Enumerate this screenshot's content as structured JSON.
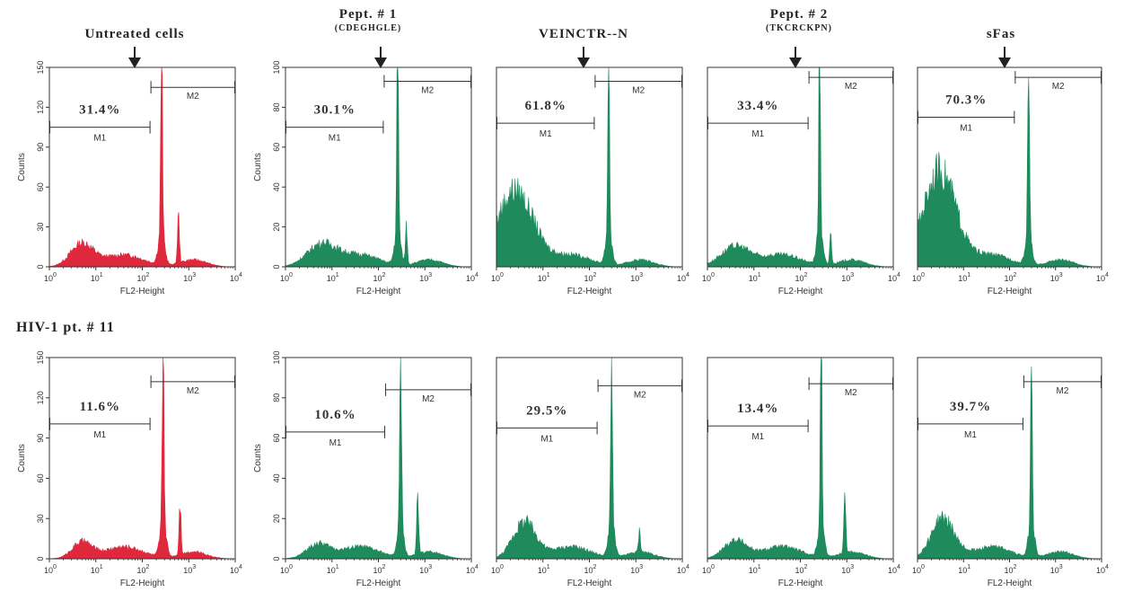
{
  "columns": [
    {
      "title": "Untreated cells",
      "subtitle": ""
    },
    {
      "title": "Pept. # 1",
      "subtitle": "(CDEGHGLE)"
    },
    {
      "title": "VEINCTR--N",
      "subtitle": ""
    },
    {
      "title": "Pept. # 2",
      "subtitle": "(TKCRCKPN)"
    },
    {
      "title": "sFas",
      "subtitle": ""
    }
  ],
  "row_label": "HIV-1 pt. # 11",
  "colors": {
    "untreated": "#e0283c",
    "treated": "#1f8a5c",
    "axis": "#333333"
  },
  "chart_data": [
    {
      "type": "area",
      "row": 1,
      "col": 1,
      "color": "untreated",
      "xlabel": "FL2-Height",
      "ylabel": "Counts",
      "xscale": "log",
      "xlim": [
        1,
        10000
      ],
      "ylim": [
        0,
        150
      ],
      "yticks": [
        0,
        30,
        60,
        90,
        120,
        150
      ],
      "percent_label": "31.4%",
      "markers": [
        {
          "name": "M1",
          "range": [
            1,
            150
          ],
          "level": 70
        },
        {
          "name": "M2",
          "range": [
            150,
            10000
          ],
          "level": 90
        }
      ],
      "peak": 260,
      "peak_height": 148,
      "second_peak": 600,
      "second_peak_height": 35,
      "base_bump": {
        "center": 5,
        "height": 17,
        "width": 0.35
      }
    },
    {
      "type": "area",
      "row": 1,
      "col": 2,
      "color": "treated",
      "xlabel": "FL2-Height",
      "ylabel": "Counts",
      "xscale": "log",
      "xlim": [
        1,
        10000
      ],
      "ylim": [
        0,
        100
      ],
      "yticks": [
        0,
        20,
        40,
        60,
        80,
        100
      ],
      "percent_label": "30.1%",
      "markers": [
        {
          "name": "M1",
          "range": [
            1,
            130
          ],
          "level": 70
        },
        {
          "name": "M2",
          "range": [
            130,
            10000
          ],
          "level": 93
        }
      ],
      "peak": 260,
      "peak_height": 98,
      "second_peak": 400,
      "second_peak_height": 20,
      "base_bump": {
        "center": 6,
        "height": 11,
        "width": 0.45
      }
    },
    {
      "type": "area",
      "row": 1,
      "col": 3,
      "color": "treated",
      "xlabel": "FL2-Height",
      "ylabel": "",
      "xscale": "log",
      "xlim": [
        1,
        10000
      ],
      "ylim": [
        0,
        100
      ],
      "yticks": [],
      "percent_label": "61.8%",
      "markers": [
        {
          "name": "M1",
          "range": [
            1,
            130
          ],
          "level": 72
        },
        {
          "name": "M2",
          "range": [
            130,
            10000
          ],
          "level": 93
        }
      ],
      "peak": 260,
      "peak_height": 98,
      "second_peak": 0,
      "second_peak_height": 0,
      "base_bump": {
        "center": 2.5,
        "height": 38,
        "width": 0.55
      }
    },
    {
      "type": "area",
      "row": 1,
      "col": 4,
      "color": "treated",
      "xlabel": "FL2-Height",
      "ylabel": "",
      "xscale": "log",
      "xlim": [
        1,
        10000
      ],
      "ylim": [
        0,
        100
      ],
      "yticks": [],
      "percent_label": "33.4%",
      "markers": [
        {
          "name": "M1",
          "range": [
            1,
            150
          ],
          "level": 72
        },
        {
          "name": "M2",
          "range": [
            150,
            10000
          ],
          "level": 95
        }
      ],
      "peak": 260,
      "peak_height": 98,
      "second_peak": 450,
      "second_peak_height": 15,
      "base_bump": {
        "center": 4,
        "height": 10,
        "width": 0.45
      }
    },
    {
      "type": "area",
      "row": 1,
      "col": 5,
      "color": "treated",
      "xlabel": "FL2-Height",
      "ylabel": "",
      "xscale": "log",
      "xlim": [
        1,
        10000
      ],
      "ylim": [
        0,
        100
      ],
      "yticks": [],
      "percent_label": "70.3%",
      "markers": [
        {
          "name": "M1",
          "range": [
            1,
            130
          ],
          "level": 75
        },
        {
          "name": "M2",
          "range": [
            130,
            10000
          ],
          "level": 95
        }
      ],
      "peak": 260,
      "peak_height": 98,
      "second_peak": 0,
      "second_peak_height": 0,
      "base_bump": {
        "center": 3,
        "height": 48,
        "width": 0.5
      }
    },
    {
      "type": "area",
      "row": 2,
      "col": 1,
      "color": "untreated",
      "xlabel": "FL2-Height",
      "ylabel": "Counts",
      "xscale": "log",
      "xlim": [
        1,
        10000
      ],
      "ylim": [
        0,
        150
      ],
      "yticks": [
        0,
        30,
        60,
        90,
        120,
        150
      ],
      "percent_label": "11.6%",
      "markers": [
        {
          "name": "M1",
          "range": [
            1,
            150
          ],
          "level": 67
        },
        {
          "name": "M2",
          "range": [
            150,
            10000
          ],
          "level": 88
        }
      ],
      "peak": 280,
      "peak_height": 148,
      "second_peak": 650,
      "second_peak_height": 40,
      "base_bump": {
        "center": 5,
        "height": 12,
        "width": 0.3
      }
    },
    {
      "type": "area",
      "row": 2,
      "col": 2,
      "color": "treated",
      "xlabel": "FL2-Height",
      "ylabel": "Counts",
      "xscale": "log",
      "xlim": [
        1,
        10000
      ],
      "ylim": [
        0,
        100
      ],
      "yticks": [
        0,
        20,
        40,
        60,
        80,
        100
      ],
      "percent_label": "10.6%",
      "markers": [
        {
          "name": "M1",
          "range": [
            1,
            140
          ],
          "level": 63
        },
        {
          "name": "M2",
          "range": [
            140,
            10000
          ],
          "level": 84
        }
      ],
      "peak": 300,
      "peak_height": 98,
      "second_peak": 700,
      "second_peak_height": 28,
      "base_bump": {
        "center": 5,
        "height": 7,
        "width": 0.35
      }
    },
    {
      "type": "area",
      "row": 2,
      "col": 3,
      "color": "treated",
      "xlabel": "FL2-Height",
      "ylabel": "",
      "xscale": "log",
      "xlim": [
        1,
        10000
      ],
      "ylim": [
        0,
        100
      ],
      "yticks": [],
      "percent_label": "29.5%",
      "markers": [
        {
          "name": "M1",
          "range": [
            1,
            150
          ],
          "level": 65
        },
        {
          "name": "M2",
          "range": [
            150,
            10000
          ],
          "level": 86
        }
      ],
      "peak": 300,
      "peak_height": 98,
      "second_peak": 1200,
      "second_peak_height": 10,
      "base_bump": {
        "center": 4,
        "height": 18,
        "width": 0.35
      }
    },
    {
      "type": "area",
      "row": 2,
      "col": 4,
      "color": "treated",
      "xlabel": "FL2-Height",
      "ylabel": "",
      "xscale": "log",
      "xlim": [
        1,
        10000
      ],
      "ylim": [
        0,
        100
      ],
      "yticks": [],
      "percent_label": "13.4%",
      "markers": [
        {
          "name": "M1",
          "range": [
            1,
            150
          ],
          "level": 66
        },
        {
          "name": "M2",
          "range": [
            150,
            10000
          ],
          "level": 87
        }
      ],
      "peak": 280,
      "peak_height": 98,
      "second_peak": 900,
      "second_peak_height": 32,
      "base_bump": {
        "center": 4,
        "height": 9,
        "width": 0.35
      }
    },
    {
      "type": "area",
      "row": 2,
      "col": 5,
      "color": "treated",
      "xlabel": "FL2-Height",
      "ylabel": "",
      "xscale": "log",
      "xlim": [
        1,
        10000
      ],
      "ylim": [
        0,
        100
      ],
      "yticks": [],
      "percent_label": "39.7%",
      "markers": [
        {
          "name": "M1",
          "range": [
            1,
            200
          ],
          "level": 67
        },
        {
          "name": "M2",
          "range": [
            200,
            10000
          ],
          "level": 88
        }
      ],
      "peak": 300,
      "peak_height": 98,
      "second_peak": 0,
      "second_peak_height": 0,
      "base_bump": {
        "center": 3.5,
        "height": 20,
        "width": 0.35
      }
    }
  ]
}
